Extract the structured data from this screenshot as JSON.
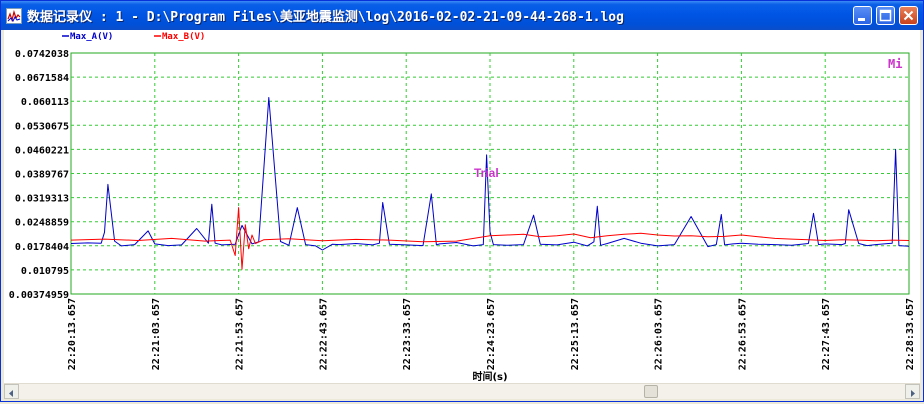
{
  "window": {
    "title": "数据记录仪 : 1 - D:\\Program Files\\美亚地震监测\\log\\2016-02-02-21-09-44-268-1.log",
    "colors": {
      "titlebar": "#0055e5",
      "client_bg": "#ffffff",
      "grid": "#33cc33"
    }
  },
  "chart_data": {
    "type": "line",
    "title": "",
    "annotation": "Trial",
    "corner_label": "Mi",
    "xlabel": "时间(s)",
    "ylabel": "",
    "x_ticks": [
      "22:20:13.657",
      "22:21:03.657",
      "22:21:53.657",
      "22:22:43.657",
      "22:23:33.657",
      "22:24:23.657",
      "22:25:13.657",
      "22:26:03.657",
      "22:26:53.657",
      "22:27:43.657",
      "22:28:33.657"
    ],
    "y_ticks": [
      "0.0742038",
      "0.0671584",
      "0.060113",
      "0.0530675",
      "0.0460221",
      "0.0389767",
      "0.0319313",
      "0.0248859",
      "0.0178404",
      "0.010795",
      "0.00374959"
    ],
    "ylim": [
      0.00374959,
      0.0742038
    ],
    "xlim": [
      0,
      500
    ],
    "grid": true,
    "legend_position": "top-left",
    "series": [
      {
        "name": "Max_A(V)",
        "color": "#0000cc",
        "x": [
          0,
          10,
          18,
          20,
          22,
          26,
          30,
          38,
          46,
          50,
          58,
          66,
          75,
          82,
          84,
          86,
          90,
          98,
          102,
          108,
          112,
          118,
          125,
          130,
          135,
          140,
          146,
          150,
          156,
          160,
          170,
          180,
          184,
          186,
          190,
          200,
          210,
          215,
          218,
          220,
          230,
          240,
          246,
          248,
          250,
          252,
          260,
          270,
          276,
          280,
          290,
          300,
          308,
          312,
          314,
          316,
          320,
          330,
          340,
          350,
          360,
          370,
          380,
          385,
          388,
          390,
          395,
          400,
          410,
          420,
          430,
          440,
          443,
          446,
          450,
          460,
          462,
          464,
          470,
          475,
          480,
          490,
          492,
          494,
          500
        ],
        "y": [
          0.0185,
          0.0187,
          0.0186,
          0.0218,
          0.0358,
          0.0192,
          0.0178,
          0.0182,
          0.0222,
          0.0184,
          0.0179,
          0.0181,
          0.0229,
          0.0186,
          0.03,
          0.0186,
          0.0181,
          0.0183,
          0.0238,
          0.0184,
          0.019,
          0.0612,
          0.0191,
          0.018,
          0.029,
          0.0182,
          0.0178,
          0.0166,
          0.0183,
          0.0182,
          0.0185,
          0.0181,
          0.0186,
          0.0305,
          0.0183,
          0.0181,
          0.0179,
          0.033,
          0.0181,
          0.0184,
          0.0188,
          0.0178,
          0.0182,
          0.0444,
          0.0219,
          0.0182,
          0.018,
          0.0182,
          0.0268,
          0.0183,
          0.0181,
          0.0189,
          0.0178,
          0.019,
          0.0294,
          0.018,
          0.0185,
          0.02,
          0.0186,
          0.0178,
          0.0182,
          0.0264,
          0.0176,
          0.0182,
          0.027,
          0.0181,
          0.0184,
          0.0186,
          0.0183,
          0.0182,
          0.018,
          0.0185,
          0.0273,
          0.0182,
          0.0184,
          0.0182,
          0.0185,
          0.0284,
          0.0185,
          0.0179,
          0.0182,
          0.0186,
          0.046,
          0.0179,
          0.0177
        ]
      },
      {
        "name": "Max_B(V)",
        "color": "#ff0000",
        "x": [
          0,
          20,
          40,
          60,
          80,
          95,
          98,
          100,
          102,
          104,
          106,
          108,
          110,
          115,
          130,
          150,
          170,
          190,
          210,
          230,
          250,
          260,
          270,
          280,
          290,
          300,
          310,
          320,
          330,
          340,
          350,
          360,
          370,
          380,
          390,
          400,
          410,
          420,
          430,
          440,
          450,
          460,
          470,
          480,
          490,
          500
        ],
        "y": [
          0.0195,
          0.0198,
          0.0194,
          0.02,
          0.0192,
          0.0195,
          0.015,
          0.029,
          0.011,
          0.024,
          0.017,
          0.021,
          0.0185,
          0.0196,
          0.0199,
          0.0193,
          0.0197,
          0.0195,
          0.019,
          0.0192,
          0.0208,
          0.021,
          0.0212,
          0.0205,
          0.0208,
          0.0213,
          0.0202,
          0.0208,
          0.0212,
          0.0215,
          0.021,
          0.0207,
          0.0208,
          0.0205,
          0.0206,
          0.021,
          0.0205,
          0.02,
          0.0198,
          0.0196,
          0.0194,
          0.0196,
          0.0195,
          0.0193,
          0.0195,
          0.0194
        ]
      }
    ]
  }
}
